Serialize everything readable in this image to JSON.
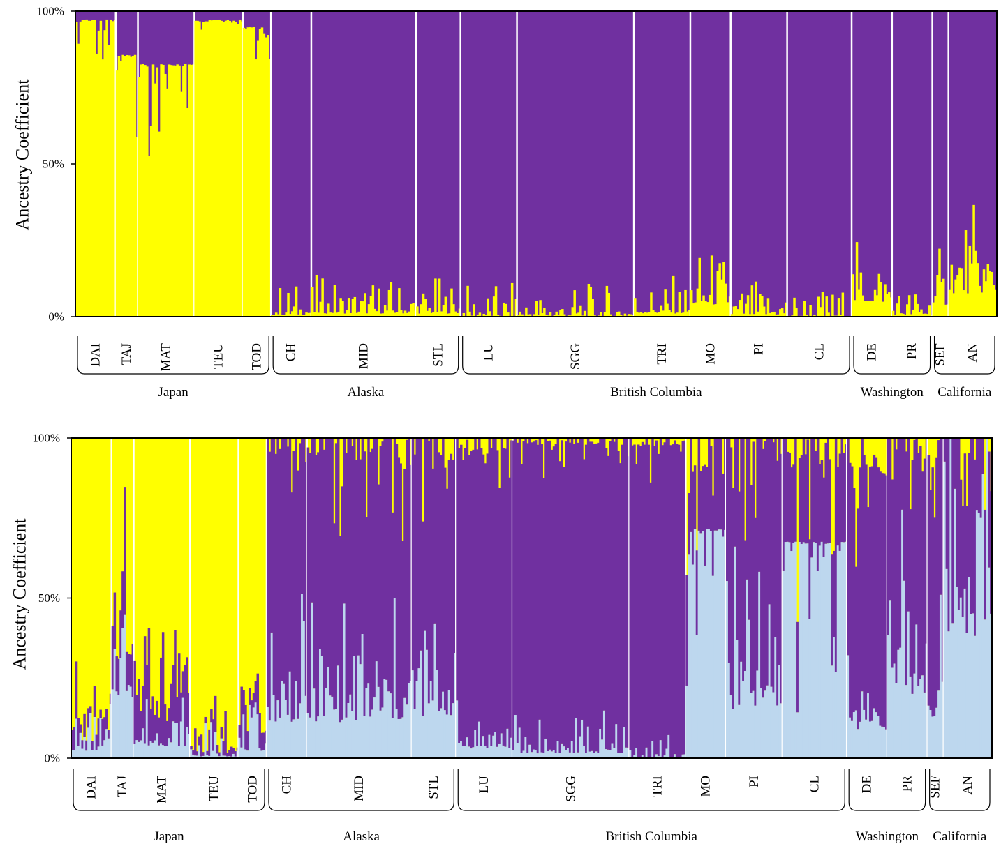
{
  "chart_data": [
    {
      "type": "bar",
      "stacked": true,
      "ylabel": "Ancestry Coefficient",
      "ylim": [
        0,
        100
      ],
      "y_ticks": [
        "0%",
        "50%",
        "100%"
      ],
      "series": [
        {
          "color": "#ffff00"
        },
        {
          "color": "#7030a0"
        }
      ],
      "populations": [
        {
          "code": "DAI",
          "region": "Japan",
          "n": 20,
          "yellow": 97.5
        },
        {
          "code": "TAJ",
          "region": "Japan",
          "n": 11,
          "yellow": 86
        },
        {
          "code": "MAT",
          "region": "Japan",
          "n": 28,
          "yellow": 83
        },
        {
          "code": "TEU",
          "region": "Japan",
          "n": 24,
          "yellow": 97.5
        },
        {
          "code": "TOD",
          "region": "Japan",
          "n": 14,
          "yellow": 95
        },
        {
          "code": "CH",
          "region": "Alaska",
          "n": 20,
          "yellow": 1
        },
        {
          "code": "MID",
          "region": "Alaska",
          "n": 52,
          "yellow": 1.5
        },
        {
          "code": "STL",
          "region": "Alaska",
          "n": 22,
          "yellow": 1.5
        },
        {
          "code": "LU",
          "region": "British Columbia",
          "n": 28,
          "yellow": 0.5
        },
        {
          "code": "SGG",
          "region": "British Columbia",
          "n": 58,
          "yellow": 0.5
        },
        {
          "code": "TRI",
          "region": "British Columbia",
          "n": 28,
          "yellow": 1.5
        },
        {
          "code": "MO",
          "region": "British Columbia",
          "n": 20,
          "yellow": 5
        },
        {
          "code": "PI",
          "region": "British Columbia",
          "n": 28,
          "yellow": 1
        },
        {
          "code": "CL",
          "region": "British Columbia",
          "n": 32,
          "yellow": 0.3
        },
        {
          "code": "DE",
          "region": "Washington",
          "n": 20,
          "yellow": 6
        },
        {
          "code": "PR",
          "region": "Washington",
          "n": 20,
          "yellow": 1
        },
        {
          "code": "SEF",
          "region": "California",
          "n": 8,
          "yellow": 5
        },
        {
          "code": "AN",
          "region": "California",
          "n": 24,
          "yellow": 10
        }
      ]
    },
    {
      "type": "bar",
      "stacked": true,
      "ylabel": "Ancestry Coefficient",
      "ylim": [
        0,
        100
      ],
      "y_ticks": [
        "0%",
        "50%",
        "100%"
      ],
      "series": [
        {
          "color": "#bdd7ee"
        },
        {
          "color": "#7030a0"
        },
        {
          "color": "#ffff00"
        }
      ],
      "populations": [
        {
          "code": "DAI",
          "region": "Japan",
          "n": 20,
          "blue": 3,
          "purple": 3,
          "yellow": 94
        },
        {
          "code": "TAJ",
          "region": "Japan",
          "n": 11,
          "blue": 25,
          "purple": 12,
          "yellow": 63
        },
        {
          "code": "MAT",
          "region": "Japan",
          "n": 28,
          "blue": 5,
          "purple": 10,
          "yellow": 85
        },
        {
          "code": "TEU",
          "region": "Japan",
          "n": 24,
          "blue": 1,
          "purple": 1.5,
          "yellow": 97.5
        },
        {
          "code": "TOD",
          "region": "Japan",
          "n": 14,
          "blue": 3,
          "purple": 5,
          "yellow": 92
        },
        {
          "code": "CH",
          "region": "Alaska",
          "n": 20,
          "blue": 15,
          "purple": 84.5,
          "yellow": 0.5
        },
        {
          "code": "MID",
          "region": "Alaska",
          "n": 52,
          "blue": 15,
          "purple": 83.5,
          "yellow": 1.5
        },
        {
          "code": "STL",
          "region": "Alaska",
          "n": 22,
          "blue": 17,
          "purple": 82.5,
          "yellow": 0.5
        },
        {
          "code": "LU",
          "region": "British Columbia",
          "n": 28,
          "blue": 4,
          "purple": 93.5,
          "yellow": 2.5
        },
        {
          "code": "SGG",
          "region": "British Columbia",
          "n": 58,
          "blue": 2,
          "purple": 97,
          "yellow": 1
        },
        {
          "code": "TRI",
          "region": "British Columbia",
          "n": 28,
          "blue": 0.3,
          "purple": 98.2,
          "yellow": 1.5
        },
        {
          "code": "MO",
          "region": "British Columbia",
          "n": 20,
          "blue": 72,
          "purple": 25,
          "yellow": 3
        },
        {
          "code": "PI",
          "region": "British Columbia",
          "n": 28,
          "blue": 20,
          "purple": 78.5,
          "yellow": 1.5
        },
        {
          "code": "CL",
          "region": "British Columbia",
          "n": 32,
          "blue": 68,
          "purple": 31.8,
          "yellow": 0.2
        },
        {
          "code": "DE",
          "region": "Washington",
          "n": 20,
          "blue": 12,
          "purple": 80,
          "yellow": 8
        },
        {
          "code": "PR",
          "region": "Washington",
          "n": 20,
          "blue": 25,
          "purple": 73.5,
          "yellow": 1.5
        },
        {
          "code": "SEF",
          "region": "California",
          "n": 8,
          "blue": 16,
          "purple": 79,
          "yellow": 5
        },
        {
          "code": "AN",
          "region": "California",
          "n": 24,
          "blue": 50,
          "purple": 43,
          "yellow": 7
        }
      ]
    }
  ]
}
